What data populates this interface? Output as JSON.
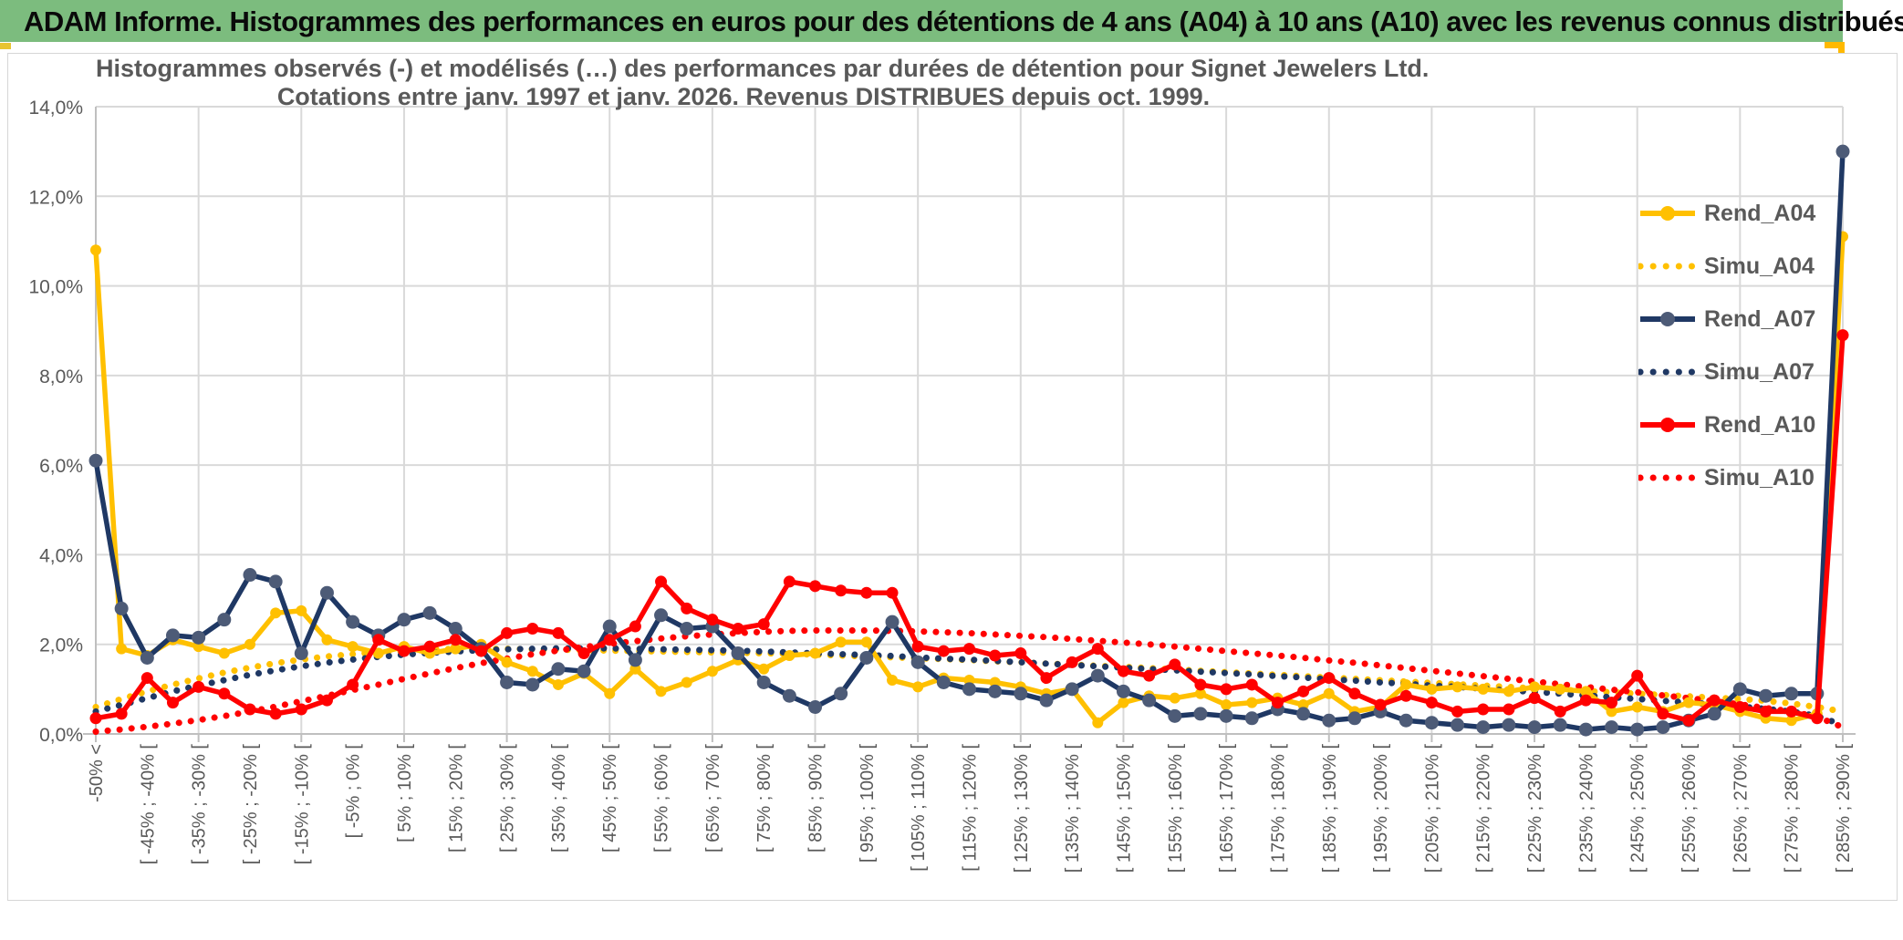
{
  "header": {
    "title": "ADAM Informe. Histogrammes des performances en euros pour des détentions de 4 ans (A04) à 10 ans (A10) avec les revenus connus distribués"
  },
  "colors": {
    "header_green": "#7cbc7e",
    "accent_orange": "#ffb900",
    "series_yellow": "#FFC000",
    "series_navy": "#1F3864",
    "navy_marker": "#4d5b77",
    "series_red": "#FF0000",
    "text_gray": "#595959",
    "gridline": "#d9d9d9",
    "axis_line": "#bfbfbf"
  },
  "chart_data": {
    "type": "line",
    "title_line1": "Histogrammes observés (-) et modélisés (…) des performances par durées de détention pour Signet Jewelers Ltd.",
    "title_line2": "Cotations entre janv. 1997 et janv. 2026. Revenus DISTRIBUES depuis oct. 1999.",
    "ylabel": "",
    "xlabel": "",
    "ylim": [
      0,
      14
    ],
    "y_ticks": [
      "0,0%",
      "2,0%",
      "4,0%",
      "6,0%",
      "8,0%",
      "10,0%",
      "12,0%",
      "14,0%"
    ],
    "grid": true,
    "legend_position": "right-inside",
    "categories": [
      "-50% <",
      "",
      "[ -45% ; -40% [",
      "",
      "[ -35% ; -30% [",
      "",
      "[ -25% ; -20% [",
      "",
      "[ -15% ; -10% [",
      "",
      "[ -5% ; 0% [",
      "",
      "[ 5% ; 10% [",
      "",
      "[ 15% ; 20% [",
      "",
      "[ 25% ; 30% [",
      "",
      "[ 35% ; 40% [",
      "",
      "[ 45% ; 50% [",
      "",
      "[ 55% ; 60% [",
      "",
      "[ 65% ; 70% [",
      "",
      "[ 75% ; 80% [",
      "",
      "[ 85% ; 90% [",
      "",
      "[ 95% ; 100% [",
      "",
      "[ 105% ; 110% [",
      "",
      "[ 115% ; 120% [",
      "",
      "[ 125% ; 130% [",
      "",
      "[ 135% ; 140% [",
      "",
      "[ 145% ; 150% [",
      "",
      "[ 155% ; 160% [",
      "",
      "[ 165% ; 170% [",
      "",
      "[ 175% ; 180% [",
      "",
      "[ 185% ; 190% [",
      "",
      "[ 195% ; 200% [",
      "",
      "[ 205% ; 210% [",
      "",
      "[ 215% ; 220% [",
      "",
      "[ 225% ; 230% [",
      "",
      "[ 235% ; 240% [",
      "",
      "[ 245% ; 250% [",
      "",
      "[ 255% ; 260% [",
      "",
      "[ 265% ; 270% [",
      "",
      "[ 275% ; 280% [",
      "",
      "[ 285% ; 290% ["
    ],
    "series": [
      {
        "name": "Rend_A04",
        "style": "solid",
        "color": "#FFC000",
        "marker_color": "#FFC000",
        "marker_r": 6,
        "values": [
          10.8,
          1.9,
          1.75,
          2.1,
          1.95,
          1.8,
          2.0,
          2.7,
          2.75,
          2.1,
          1.95,
          1.8,
          1.95,
          1.8,
          1.9,
          2.0,
          1.6,
          1.4,
          1.1,
          1.35,
          0.9,
          1.45,
          0.95,
          1.15,
          1.4,
          1.65,
          1.45,
          1.75,
          1.8,
          2.05,
          2.05,
          1.2,
          1.05,
          1.25,
          1.2,
          1.15,
          1.05,
          0.9,
          1.0,
          0.25,
          0.7,
          0.85,
          0.8,
          0.9,
          0.65,
          0.7,
          0.8,
          0.65,
          0.9,
          0.5,
          0.6,
          1.1,
          1.0,
          1.05,
          1.0,
          0.95,
          1.05,
          1.0,
          0.95,
          0.5,
          0.6,
          0.5,
          0.7,
          0.65,
          0.5,
          0.35,
          0.3,
          0.45,
          11.1
        ]
      },
      {
        "name": "Simu_A04",
        "style": "dotted",
        "color": "#FFC000",
        "values": [
          0.6,
          0.78,
          0.95,
          1.1,
          1.24,
          1.37,
          1.48,
          1.58,
          1.66,
          1.73,
          1.78,
          1.83,
          1.86,
          1.88,
          1.9,
          1.9,
          1.9,
          1.89,
          1.88,
          1.87,
          1.86,
          1.85,
          1.84,
          1.83,
          1.82,
          1.81,
          1.8,
          1.79,
          1.77,
          1.75,
          1.73,
          1.71,
          1.69,
          1.67,
          1.65,
          1.62,
          1.6,
          1.57,
          1.55,
          1.52,
          1.5,
          1.47,
          1.44,
          1.41,
          1.38,
          1.35,
          1.32,
          1.29,
          1.26,
          1.23,
          1.2,
          1.17,
          1.14,
          1.11,
          1.08,
          1.05,
          1.02,
          0.99,
          0.96,
          0.93,
          0.9,
          0.87,
          0.84,
          0.81,
          0.78,
          0.74,
          0.68,
          0.6,
          0.5
        ]
      },
      {
        "name": "Rend_A07",
        "style": "solid",
        "color": "#1F3864",
        "marker_color": "#4d5b77",
        "marker_r": 7.5,
        "values": [
          6.1,
          2.8,
          1.7,
          2.2,
          2.15,
          2.55,
          3.55,
          3.4,
          1.8,
          3.15,
          2.5,
          2.2,
          2.55,
          2.7,
          2.35,
          1.9,
          1.15,
          1.1,
          1.45,
          1.4,
          2.4,
          1.65,
          2.65,
          2.35,
          2.4,
          1.8,
          1.15,
          0.85,
          0.6,
          0.9,
          1.7,
          2.5,
          1.6,
          1.15,
          1.0,
          0.95,
          0.9,
          0.75,
          1.0,
          1.3,
          0.95,
          0.75,
          0.4,
          0.45,
          0.4,
          0.35,
          0.55,
          0.45,
          0.3,
          0.35,
          0.5,
          0.3,
          0.25,
          0.2,
          0.15,
          0.2,
          0.15,
          0.2,
          0.1,
          0.15,
          0.1,
          0.15,
          0.3,
          0.45,
          1.0,
          0.85,
          0.9,
          0.9,
          13.0
        ]
      },
      {
        "name": "Simu_A07",
        "style": "dotted",
        "color": "#1F3864",
        "values": [
          0.5,
          0.65,
          0.8,
          0.95,
          1.08,
          1.2,
          1.32,
          1.42,
          1.51,
          1.59,
          1.66,
          1.72,
          1.77,
          1.81,
          1.84,
          1.87,
          1.89,
          1.9,
          1.91,
          1.91,
          1.91,
          1.9,
          1.89,
          1.88,
          1.87,
          1.86,
          1.84,
          1.82,
          1.8,
          1.78,
          1.76,
          1.74,
          1.71,
          1.68,
          1.66,
          1.63,
          1.6,
          1.57,
          1.54,
          1.51,
          1.48,
          1.45,
          1.42,
          1.39,
          1.36,
          1.33,
          1.29,
          1.26,
          1.22,
          1.19,
          1.15,
          1.12,
          1.08,
          1.05,
          1.01,
          0.97,
          0.94,
          0.9,
          0.86,
          0.82,
          0.78,
          0.74,
          0.7,
          0.66,
          0.61,
          0.56,
          0.5,
          0.4,
          0.2
        ]
      },
      {
        "name": "Rend_A10",
        "style": "solid",
        "color": "#FF0000",
        "marker_color": "#FF0000",
        "marker_r": 6.5,
        "values": [
          0.35,
          0.45,
          1.25,
          0.7,
          1.05,
          0.9,
          0.55,
          0.45,
          0.55,
          0.75,
          1.1,
          2.1,
          1.85,
          1.95,
          2.1,
          1.85,
          2.25,
          2.35,
          2.25,
          1.8,
          2.1,
          2.4,
          3.4,
          2.8,
          2.55,
          2.35,
          2.45,
          3.4,
          3.3,
          3.2,
          3.15,
          3.15,
          1.95,
          1.85,
          1.9,
          1.75,
          1.8,
          1.25,
          1.6,
          1.9,
          1.4,
          1.3,
          1.55,
          1.1,
          1.0,
          1.1,
          0.7,
          0.95,
          1.25,
          0.9,
          0.65,
          0.85,
          0.7,
          0.5,
          0.55,
          0.55,
          0.8,
          0.5,
          0.75,
          0.7,
          1.3,
          0.45,
          0.3,
          0.75,
          0.6,
          0.5,
          0.5,
          0.35,
          8.9
        ]
      },
      {
        "name": "Simu_A10",
        "style": "dotted",
        "color": "#FF0000",
        "values": [
          0.05,
          0.1,
          0.16,
          0.23,
          0.31,
          0.4,
          0.5,
          0.61,
          0.73,
          0.85,
          0.98,
          1.1,
          1.23,
          1.35,
          1.47,
          1.58,
          1.68,
          1.78,
          1.86,
          1.94,
          2.01,
          2.07,
          2.13,
          2.18,
          2.22,
          2.25,
          2.28,
          2.3,
          2.31,
          2.31,
          2.31,
          2.3,
          2.29,
          2.27,
          2.25,
          2.22,
          2.19,
          2.16,
          2.12,
          2.08,
          2.04,
          2.0,
          1.95,
          1.9,
          1.85,
          1.8,
          1.75,
          1.7,
          1.64,
          1.59,
          1.53,
          1.47,
          1.41,
          1.35,
          1.29,
          1.23,
          1.17,
          1.11,
          1.05,
          0.99,
          0.93,
          0.86,
          0.8,
          0.73,
          0.66,
          0.58,
          0.5,
          0.38,
          0.15
        ]
      }
    ]
  }
}
